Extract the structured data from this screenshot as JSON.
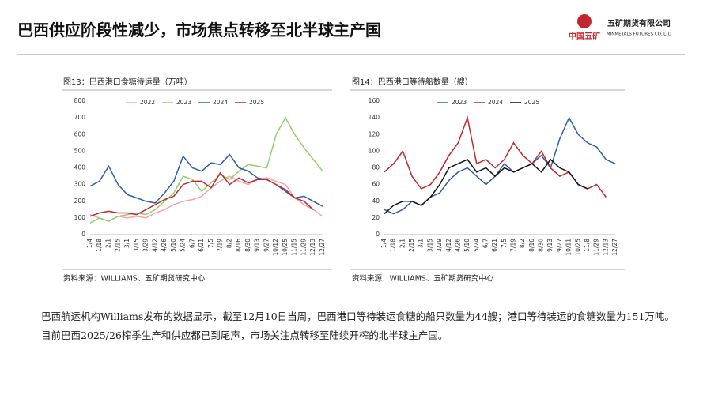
{
  "header": {
    "title": "巴西供应阶段性减少，市场焦点转移至北半球主产国",
    "company": "五矿期货有限公司",
    "company_en": "MINMETALS FUTURES CO.,LTD",
    "group": "中国五矿"
  },
  "chart_data": [
    {
      "type": "line",
      "title": "图13：巴西港口食糖待运量（万吨）",
      "source": "资料来源：WILLIAMS、五矿期货研究中心",
      "legend": "top",
      "grid": false,
      "categories": [
        "1/4",
        "1/18",
        "2/1",
        "2/15",
        "3/1",
        "3/15",
        "3/29",
        "4/12",
        "4/26",
        "5/10",
        "5/24",
        "6/7",
        "6/21",
        "7/5",
        "7/19",
        "8/2",
        "8/16",
        "8/30",
        "9/13",
        "9/27",
        "10/12",
        "10/25",
        "11/15",
        "11/29",
        "12/13",
        "12/27"
      ],
      "ylim": [
        0,
        800
      ],
      "yticks": [
        0,
        100,
        200,
        300,
        400,
        500,
        600,
        700,
        800
      ],
      "series": [
        {
          "name": "2022",
          "color": "#f4a3a8",
          "values": [
            120,
            100,
            80,
            110,
            100,
            110,
            100,
            130,
            150,
            180,
            200,
            210,
            230,
            280,
            320,
            350,
            320,
            300,
            330,
            340,
            320,
            300,
            220,
            180,
            150,
            110
          ]
        },
        {
          "name": "2023",
          "color": "#8fcf6a",
          "values": [
            70,
            100,
            80,
            110,
            120,
            130,
            120,
            150,
            200,
            250,
            350,
            330,
            260,
            310,
            360,
            330,
            380,
            420,
            410,
            400,
            600,
            700,
            600,
            520,
            450,
            380
          ]
        },
        {
          "name": "2024",
          "color": "#2d5ea8",
          "values": [
            290,
            320,
            410,
            300,
            240,
            220,
            200,
            190,
            250,
            320,
            470,
            400,
            380,
            430,
            420,
            480,
            400,
            380,
            340,
            330,
            300,
            260,
            220,
            230,
            200,
            170
          ]
        },
        {
          "name": "2025",
          "color": "#c0282d",
          "values": [
            110,
            130,
            140,
            130,
            130,
            120,
            150,
            180,
            210,
            230,
            300,
            320,
            320,
            280,
            370,
            300,
            340,
            310,
            330,
            330,
            300,
            270,
            220,
            200,
            150,
            null
          ]
        }
      ]
    },
    {
      "type": "line",
      "title": "图14：巴西港口等待船数量（艘）",
      "source": "资料来源：WILLIAMS、五矿期货研究中心",
      "legend": "top",
      "grid": false,
      "categories": [
        "1/4",
        "1/18",
        "2/1",
        "2/15",
        "3/1",
        "3/15",
        "3/29",
        "4/12",
        "4/26",
        "5/10",
        "5/24",
        "6/7",
        "6/21",
        "7/5",
        "7/19",
        "8/2",
        "8/16",
        "8/30",
        "9/13",
        "9/27",
        "10/11",
        "10/25",
        "11/8",
        "11/29",
        "12/13",
        "12/27"
      ],
      "ylim": [
        0,
        160
      ],
      "yticks": [
        0,
        20,
        40,
        60,
        80,
        100,
        120,
        140,
        160
      ],
      "series": [
        {
          "name": "2023",
          "color": "#2d5ea8",
          "values": [
            30,
            25,
            30,
            40,
            35,
            45,
            50,
            65,
            75,
            80,
            70,
            60,
            70,
            85,
            75,
            80,
            85,
            95,
            80,
            115,
            140,
            120,
            110,
            105,
            90,
            85
          ]
        },
        {
          "name": "2024",
          "color": "#c0282d",
          "values": [
            75,
            85,
            100,
            70,
            55,
            60,
            75,
            95,
            110,
            140,
            85,
            90,
            80,
            90,
            110,
            95,
            85,
            100,
            80,
            70,
            75,
            60,
            55,
            60,
            45,
            null
          ]
        },
        {
          "name": "2025",
          "color": "#111111",
          "values": [
            25,
            35,
            40,
            40,
            35,
            45,
            60,
            80,
            85,
            90,
            75,
            80,
            70,
            80,
            75,
            80,
            85,
            75,
            90,
            80,
            75,
            60,
            55,
            null,
            null,
            null
          ]
        }
      ]
    }
  ],
  "body": "巴西航运机构Williams发布的数据显示，截至12月10日当周，巴西港口等待装运食糖的船只数量为44艘；港口等待装运的食糖数量为151万吨。目前巴西2025/26榨季生产和供应都已到尾声，市场关注点转移至陆续开榨的北半球主产国。"
}
